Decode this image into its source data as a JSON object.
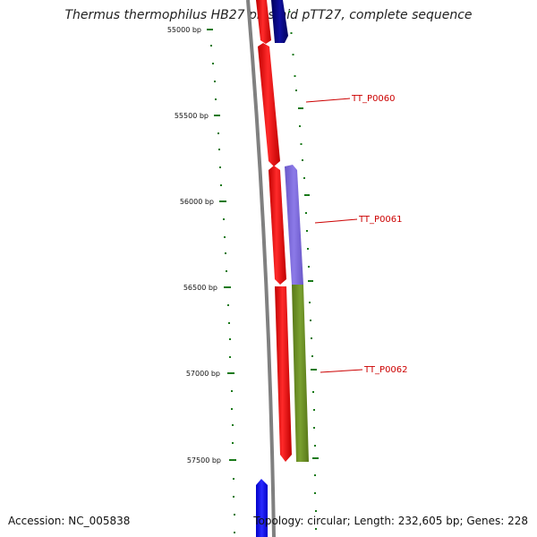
{
  "title": "Thermus thermophilus HB27 plasmid pTT27, complete sequence",
  "accession_text": "Accession: NC_005838",
  "summary_text": "Topology: circular; Length: 232,605 bp; Genes: 228",
  "colors": {
    "backbone": "#808080",
    "tick": "#1a7a1a",
    "label": "#cc0000",
    "label_line": "#cc0000",
    "red_feature": "#ff0000",
    "navy_feature": "#000080",
    "blue_feature": "#0000ff",
    "purple_feature": "#7b68d8",
    "olive_feature": "#6b8e23"
  },
  "ticks": [
    {
      "label": "55000 bp"
    },
    {
      "label": "55500 bp"
    },
    {
      "label": "56000 bp"
    },
    {
      "label": "56500 bp"
    },
    {
      "label": "57000 bp"
    },
    {
      "label": "57500 bp"
    }
  ],
  "genes": [
    {
      "label": "TT_P0060"
    },
    {
      "label": "TT_P0061"
    },
    {
      "label": "TT_P0062"
    }
  ]
}
